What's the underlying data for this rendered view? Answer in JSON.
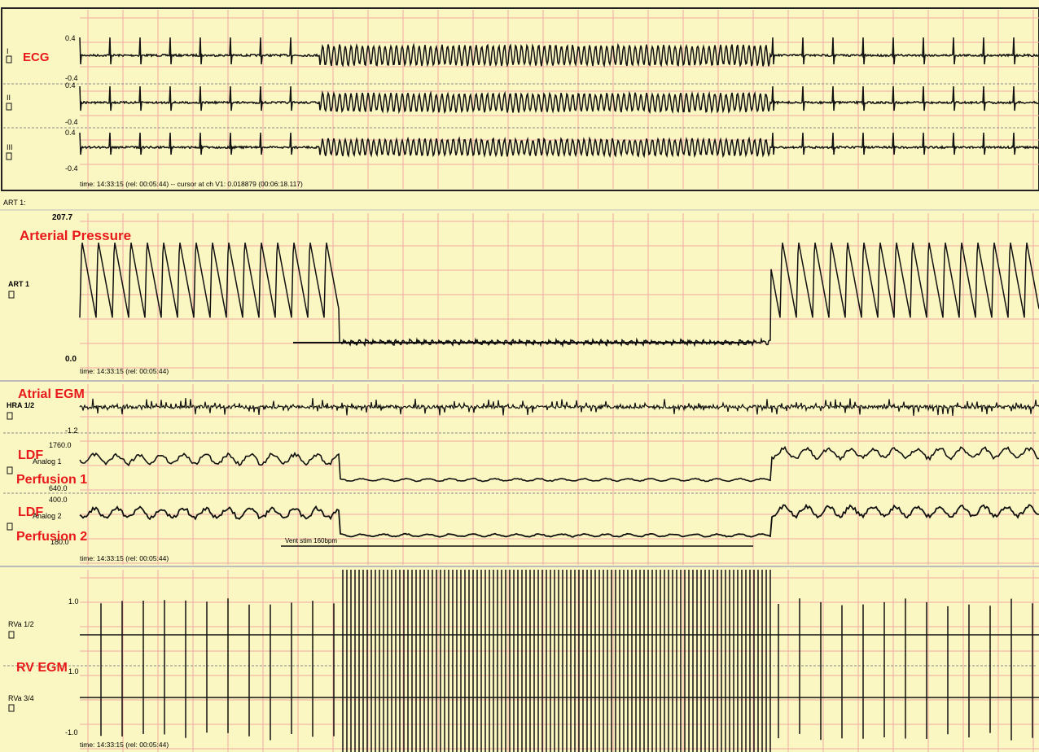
{
  "colors": {
    "background": "#fbf7c2",
    "grid": "#f2a8a2",
    "trace": "#111111",
    "overlay_label": "#e8191b",
    "panel_border": "#222222"
  },
  "overlay_labels": {
    "ecg": "ECG",
    "arterial": "Arterial Pressure",
    "atrial": "Atrial EGM",
    "ldf1_line1": "LDF",
    "ldf1_line2": "Perfusion 1",
    "ldf2_line1": "LDF",
    "ldf2_line2": "Perfusion 2",
    "rv": "RV EGM"
  },
  "panels": {
    "ecg": {
      "leads": [
        {
          "name": "I",
          "ytop": "0.4",
          "ybottom": "-0.4"
        },
        {
          "name": "II",
          "ytop": "0.4",
          "ybottom": "-0.4"
        },
        {
          "name": "III",
          "ytop": "0.4",
          "ybottom": "-0.4"
        }
      ],
      "time_text": "time: 14:33:15 (rel: 00:05:44) -- cursor at ch V1: 0.018879  (00:06:18.117)"
    },
    "art": {
      "header": "ART 1:",
      "channel": "ART 1",
      "ytop": "207.7",
      "ybottom": "0.0",
      "time_text": "time: 14:33:15 (rel: 00:05:44)"
    },
    "mid": {
      "hra_channel": "HRA 1/2",
      "hra_ybottom": "-1.2",
      "analog1_channel": "Analog 1",
      "analog1_ytop": "1760.0",
      "analog1_ybottom": "640.0",
      "analog2_channel": "Analog 2",
      "analog2_ytop": "400.0",
      "analog2_ybottom": "180.0",
      "stim_label": "Vent stim 160bpm",
      "time_text": "time: 14:33:15 (rel: 00:05:44)"
    },
    "rv": {
      "ch1": "RVa 1/2",
      "ch1_ytop": "1.0",
      "ch2": "RVa 3/4",
      "ch2_ytop": "1.0",
      "ch2_ybottom": "-1.0",
      "time_text": "time: 14:33:15 (rel: 00:05:44)"
    }
  },
  "chart_data": {
    "type": "line",
    "x_unit": "normalized time",
    "stim_window": [
      0.27,
      0.72
    ],
    "ecg_pacing_window": [
      0.25,
      0.72
    ],
    "series": [
      {
        "name": "ART 1",
        "baseline_pattern": [
          175,
          60
        ],
        "stim_pattern": [
          30,
          20
        ],
        "ylim": [
          0.0,
          207.7
        ]
      },
      {
        "name": "Analog 1",
        "baseline_level": 1400,
        "stim_level": 860,
        "recovery_level": 1550,
        "ylim": [
          640.0,
          1760.0
        ]
      },
      {
        "name": "Analog 2",
        "baseline_level": 330,
        "stim_level": 215,
        "recovery_level": 340,
        "ylim": [
          180.0,
          400.0
        ]
      }
    ]
  }
}
